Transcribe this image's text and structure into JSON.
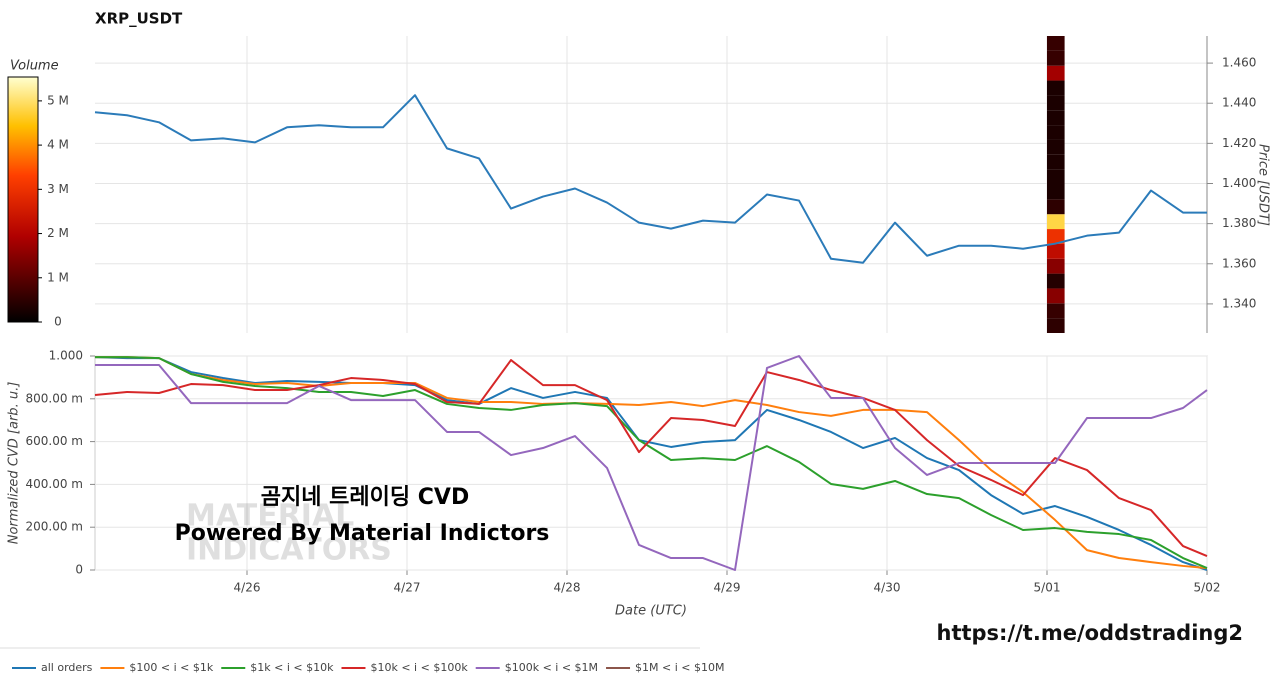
{
  "chart_data": [
    {
      "type": "line",
      "title": "XRP_USDT",
      "y_label": "Price [USDT]",
      "y_axis_side": "right",
      "grid": true,
      "x": [
        0.05,
        0.25,
        0.45,
        0.65,
        0.85,
        1.05,
        1.25,
        1.45,
        1.65,
        1.85,
        2.05,
        2.25,
        2.45,
        2.65,
        2.85,
        3.05,
        3.25,
        3.45,
        3.65,
        3.85,
        4.05,
        4.25,
        4.45,
        4.65,
        4.85,
        5.05,
        5.25,
        5.45,
        5.65,
        5.85,
        6.05,
        6.25,
        6.45,
        6.65,
        6.85,
        7.0
      ],
      "xlim": [
        0.05,
        7
      ],
      "xticks": [
        {
          "value": 1,
          "label": "4/26"
        },
        {
          "value": 2,
          "label": "4/27"
        },
        {
          "value": 3,
          "label": "4/28"
        },
        {
          "value": 4,
          "label": "4/29"
        },
        {
          "value": 5,
          "label": "4/30"
        },
        {
          "value": 6,
          "label": "5/01"
        },
        {
          "value": 7,
          "label": "5/02"
        }
      ],
      "ylim": [
        1.3255,
        1.4735
      ],
      "yticks": [
        {
          "value": 1.34,
          "label": "1.340"
        },
        {
          "value": 1.36,
          "label": "1.360"
        },
        {
          "value": 1.38,
          "label": "1.380"
        },
        {
          "value": 1.4,
          "label": "1.400"
        },
        {
          "value": 1.42,
          "label": "1.420"
        },
        {
          "value": 1.44,
          "label": "1.440"
        },
        {
          "value": 1.46,
          "label": "1.460"
        }
      ],
      "series": [
        {
          "color": "#2b7bb9",
          "values": [
            1.4355,
            1.434,
            1.4305,
            1.4215,
            1.4225,
            1.4205,
            1.428,
            1.429,
            1.428,
            1.428,
            1.444,
            1.4175,
            1.4125,
            1.3875,
            1.3935,
            1.3975,
            1.3905,
            1.3805,
            1.3775,
            1.3815,
            1.3805,
            1.3945,
            1.3915,
            1.3625,
            1.3605,
            1.3805,
            1.364,
            1.369,
            1.369,
            1.3675,
            1.37,
            1.374,
            1.3755,
            1.3965,
            1.3855,
            1.3855
          ]
        }
      ],
      "heatmap": {
        "label": "Volume",
        "colormap": "hot",
        "x_range": [
          6.0,
          6.11
        ],
        "price_bins": [
          1.3255,
          1.3329,
          1.3403,
          1.3477,
          1.3551,
          1.3625,
          1.3699,
          1.3773,
          1.3847,
          1.3921,
          1.3995,
          1.4069,
          1.4143,
          1.4217,
          1.4291,
          1.4365,
          1.4439,
          1.4513,
          1.4587,
          1.4661,
          1.4735
        ],
        "volumes": [
          500000,
          600000,
          1500000,
          400000,
          1500000,
          2200000,
          3000000,
          4800000,
          500000,
          300000,
          300000,
          300000,
          300000,
          300000,
          300000,
          300000,
          300000,
          1800000,
          600000,
          600000
        ],
        "clim": [
          0,
          5540000
        ],
        "cticks": [
          0,
          {
            "value": 1000000,
            "label": "1 M"
          },
          {
            "value": 2000000,
            "label": "2 M"
          },
          {
            "value": 3000000,
            "label": "3 M"
          },
          {
            "value": 4000000,
            "label": "4 M"
          },
          {
            "value": 5000000,
            "label": "5 M"
          }
        ]
      }
    },
    {
      "type": "line",
      "y_label": "Normalized CVD [arb. u.]",
      "x_label": "Date (UTC)",
      "grid": true,
      "x": [
        0.05,
        0.25,
        0.45,
        0.65,
        0.85,
        1.05,
        1.25,
        1.45,
        1.65,
        1.85,
        2.05,
        2.25,
        2.45,
        2.65,
        2.85,
        3.05,
        3.25,
        3.45,
        3.65,
        3.85,
        4.05,
        4.25,
        4.45,
        4.65,
        4.85,
        5.05,
        5.25,
        5.45,
        5.65,
        5.85,
        6.05,
        6.25,
        6.45,
        6.65,
        6.85,
        7.0
      ],
      "xlim": [
        0.05,
        7
      ],
      "xticks": [
        {
          "value": 1,
          "label": "4/26"
        },
        {
          "value": 2,
          "label": "4/27"
        },
        {
          "value": 3,
          "label": "4/28"
        },
        {
          "value": 4,
          "label": "4/29"
        },
        {
          "value": 5,
          "label": "4/30"
        },
        {
          "value": 6,
          "label": "5/01"
        },
        {
          "value": 7,
          "label": "5/02"
        }
      ],
      "ylim": [
        0,
        1
      ],
      "yticks": [
        0,
        {
          "value": 0.2,
          "label": "200.00 m"
        },
        {
          "value": 0.4,
          "label": "400.00 m"
        },
        {
          "value": 0.6,
          "label": "600.00 m"
        },
        {
          "value": 0.8,
          "label": "800.00 m"
        },
        {
          "value": 1,
          "label": "1.000"
        }
      ],
      "series": [
        {
          "name": "all orders",
          "color": "#1f77b4",
          "values": [
            0.995,
            0.99,
            0.99,
            0.925,
            0.897,
            0.874,
            0.883,
            0.879,
            0.874,
            0.874,
            0.864,
            0.794,
            0.776,
            0.85,
            0.804,
            0.832,
            0.804,
            0.607,
            0.575,
            0.598,
            0.607,
            0.748,
            0.701,
            0.645,
            0.57,
            0.617,
            0.523,
            0.467,
            0.35,
            0.262,
            0.299,
            0.248,
            0.187,
            0.117,
            0.037,
            0
          ]
        },
        {
          "name": "$100 < i < $1k",
          "color": "#ff7f0e",
          "values": [
            0.995,
            0.995,
            0.99,
            0.916,
            0.888,
            0.869,
            0.874,
            0.86,
            0.874,
            0.874,
            0.874,
            0.804,
            0.785,
            0.785,
            0.776,
            0.78,
            0.776,
            0.771,
            0.785,
            0.766,
            0.794,
            0.771,
            0.738,
            0.72,
            0.748,
            0.748,
            0.738,
            0.607,
            0.467,
            0.364,
            0.234,
            0.093,
            0.056,
            0.037,
            0.019,
            0.009
          ]
        },
        {
          "name": "$1k < i < $10k",
          "color": "#2ca02c",
          "values": [
            0.995,
            0.995,
            0.99,
            0.916,
            0.879,
            0.86,
            0.85,
            0.832,
            0.832,
            0.813,
            0.841,
            0.776,
            0.757,
            0.748,
            0.771,
            0.78,
            0.766,
            0.607,
            0.514,
            0.523,
            0.514,
            0.579,
            0.505,
            0.402,
            0.379,
            0.416,
            0.355,
            0.336,
            0.257,
            0.187,
            0.196,
            0.178,
            0.168,
            0.14,
            0.056,
            0.009
          ]
        },
        {
          "name": "$10k < i < $100k",
          "color": "#d62728",
          "values": [
            0.818,
            0.832,
            0.827,
            0.869,
            0.864,
            0.841,
            0.841,
            0.864,
            0.897,
            0.888,
            0.869,
            0.785,
            0.776,
            0.981,
            0.864,
            0.864,
            0.794,
            0.551,
            0.71,
            0.701,
            0.673,
            0.925,
            0.888,
            0.841,
            0.804,
            0.748,
            0.607,
            0.486,
            0.421,
            0.35,
            0.523,
            0.467,
            0.336,
            0.28,
            0.112,
            0.065
          ]
        },
        {
          "name": "$100k < i < $1M",
          "color": "#9467bd",
          "values": [
            0.958,
            0.958,
            0.958,
            0.78,
            0.78,
            0.78,
            0.78,
            0.86,
            0.794,
            0.794,
            0.794,
            0.645,
            0.645,
            0.537,
            0.57,
            0.626,
            0.477,
            0.117,
            0.056,
            0.056,
            0,
            0.944,
            1,
            0.804,
            0.804,
            0.57,
            0.444,
            0.5,
            0.5,
            0.5,
            0.5,
            0.71,
            0.71,
            0.71,
            0.757,
            0.841
          ]
        },
        {
          "name": "$1M < i < $10M",
          "color": "#8c564b",
          "values": [
            null,
            null,
            null,
            null,
            null,
            null,
            null,
            null,
            null,
            null,
            null,
            null,
            null,
            null,
            null,
            null,
            null,
            null,
            null,
            null,
            null,
            null,
            null,
            null,
            null,
            null,
            null,
            null,
            null,
            null,
            null,
            null,
            null,
            null,
            null,
            null
          ]
        }
      ],
      "annotations": [
        "곰지네 트레이딩 CVD",
        "Powered By Material Indictors",
        "MATERIAL",
        "INDICATORS"
      ]
    }
  ],
  "footer_link": "https://t.me/oddstrading2"
}
